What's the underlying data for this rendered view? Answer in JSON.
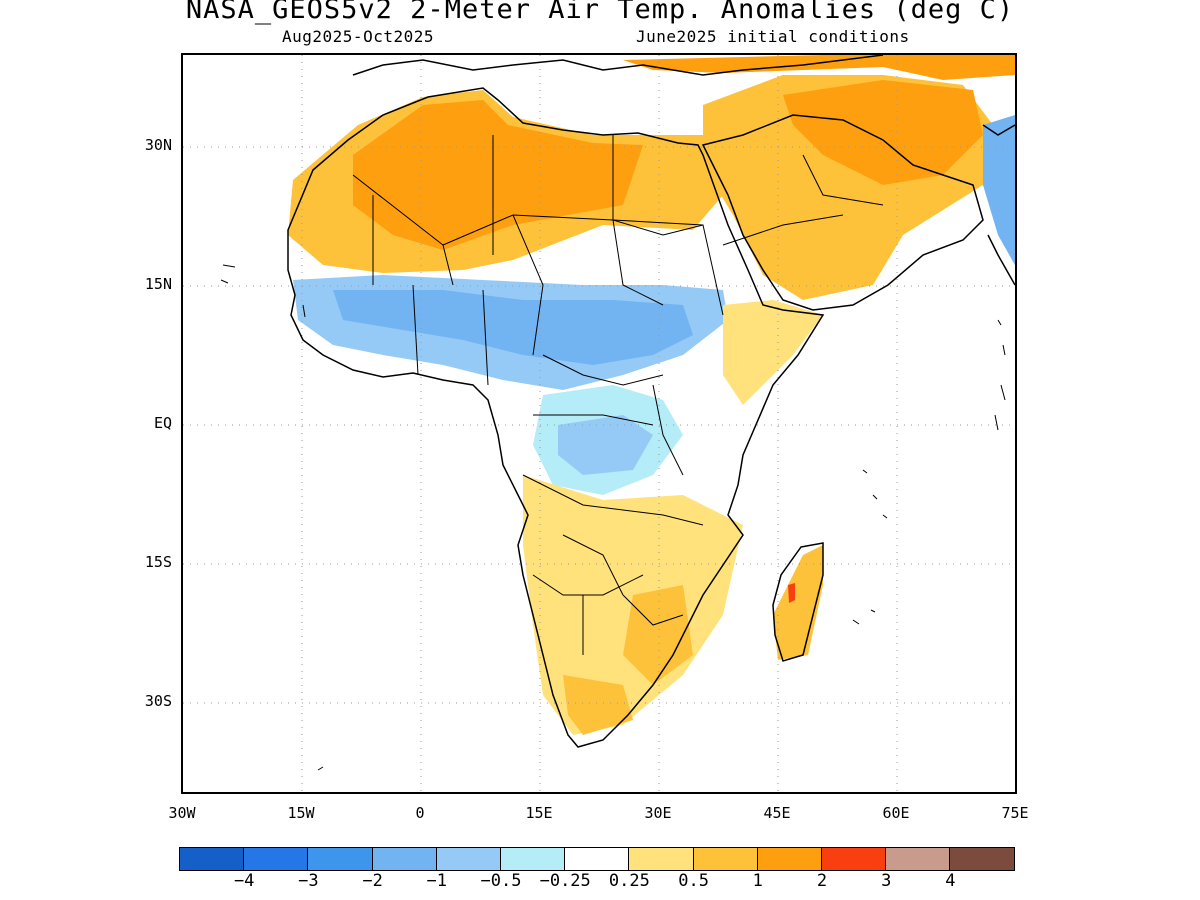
{
  "title": "NASA_GEOS5v2 2-Meter Air Temp. Anomalies (deg C)",
  "subtitle_left": "Aug2025-Oct2025",
  "subtitle_right": "June2025 initial conditions",
  "map": {
    "region": "Africa and Middle East",
    "lat_ticks": [
      "30N",
      "15N",
      "EQ",
      "15S",
      "30S"
    ],
    "lon_ticks": [
      "30W",
      "15W",
      "0",
      "15E",
      "30E",
      "45E",
      "60E",
      "75E"
    ],
    "gridlines": "dotted"
  },
  "colorbar": {
    "colors": [
      "#1560c8",
      "#2576e6",
      "#3d95ec",
      "#72b3f2",
      "#96caf6",
      "#b4ecf8",
      "#ffffff",
      "#ffe27c",
      "#fec13a",
      "#fd9f0f",
      "#f93e0f",
      "#c99b8c",
      "#7b4b3e"
    ],
    "labels": [
      "−4",
      "−3",
      "−2",
      "−1",
      "−0.5",
      "−0.25",
      "0.25",
      "0.5",
      "1",
      "2",
      "3",
      "4"
    ]
  }
}
